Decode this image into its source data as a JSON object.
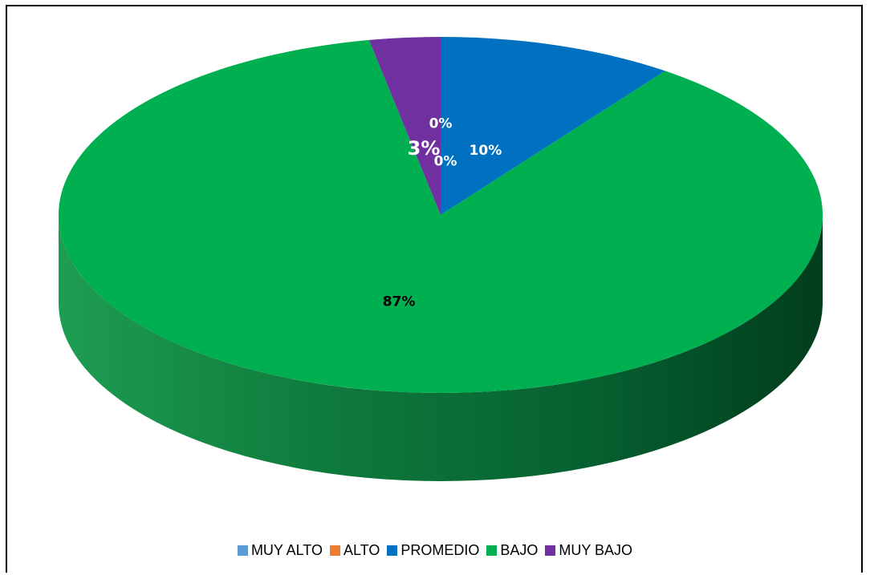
{
  "chart_data": {
    "type": "pie",
    "style": "3d",
    "categories": [
      "MUY ALTO",
      "ALTO",
      "PROMEDIO",
      "BAJO",
      "MUY BAJO"
    ],
    "values": [
      0,
      0,
      10,
      87,
      3
    ],
    "data_labels": [
      "0%",
      "0%",
      "10%",
      "87%",
      "3%"
    ],
    "colors": [
      "#5B9BD5",
      "#ED7D31",
      "#0070C0",
      "#00B050",
      "#7030A0"
    ],
    "label_colors": [
      "#ffffff",
      "#ffffff",
      "#ffffff",
      "#000000",
      "#ffffff"
    ],
    "legend_position": "bottom",
    "title": ""
  }
}
